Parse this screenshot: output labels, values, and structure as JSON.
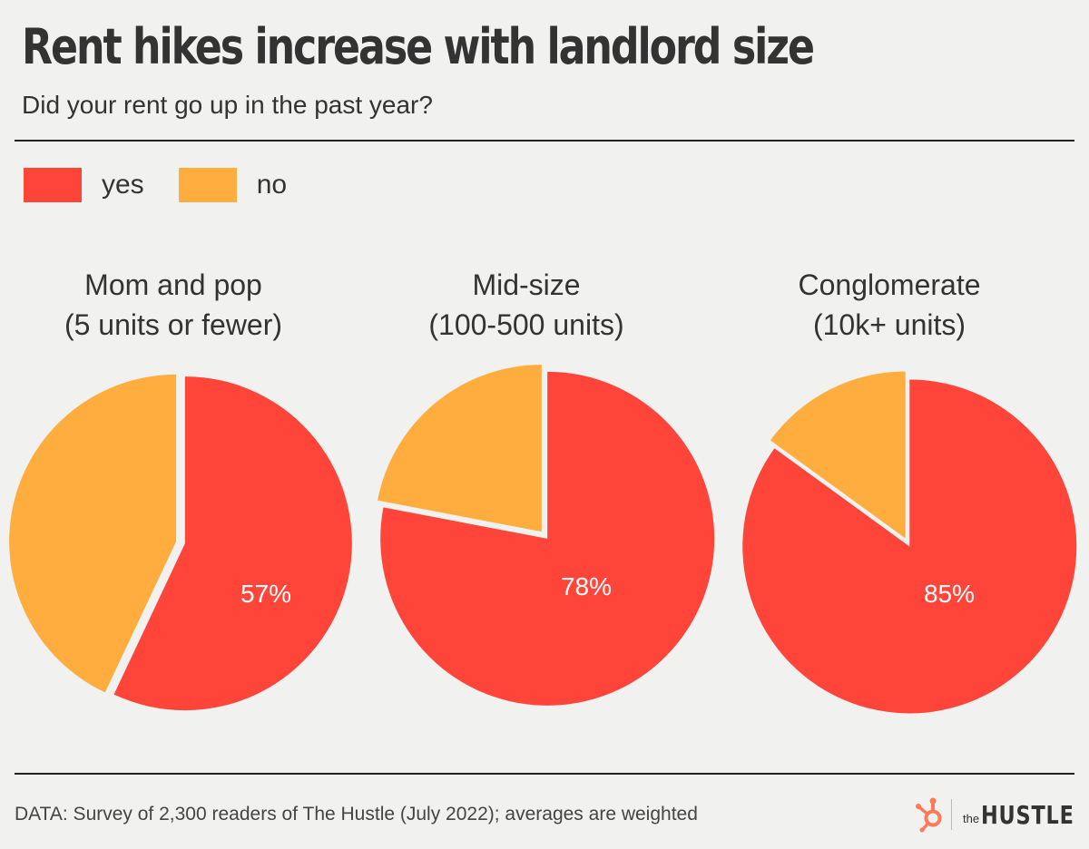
{
  "header": {
    "title": "Rent hikes increase with landlord size",
    "subtitle": "Did your rent go up in the past year?"
  },
  "legend": [
    {
      "label": "yes",
      "color": "#ff453a"
    },
    {
      "label": "no",
      "color": "#ffad3f"
    }
  ],
  "chart_data": {
    "type": "pie",
    "title": "Rent hikes increase with landlord size",
    "subtitle": "Did your rent go up in the past year?",
    "legend_placement": "top-left",
    "categories": [
      "yes",
      "no"
    ],
    "colors": {
      "yes": "#ff453a",
      "no": "#ffad3f"
    },
    "pies": [
      {
        "name_line1": "Mom and pop",
        "name_line2": "(5 units or fewer)",
        "yes": 57,
        "no": 43,
        "label": "57%"
      },
      {
        "name_line1": "Mid-size",
        "name_line2": "(100-500 units)",
        "yes": 78,
        "no": 22,
        "label": "78%"
      },
      {
        "name_line1": "Conglomerate",
        "name_line2": "(10k+ units)",
        "yes": 85,
        "no": 15,
        "label": "85%"
      }
    ]
  },
  "footer": {
    "source": "DATA: Survey of 2,300 readers of The Hustle (July 2022); averages are weighted",
    "brand_the": "the",
    "brand_name": "HUSTLE",
    "brand_icon": "hubspot-sprocket-icon"
  }
}
